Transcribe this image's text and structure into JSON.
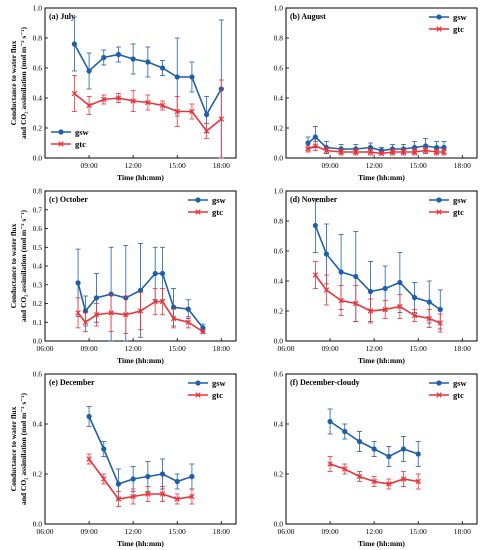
{
  "colors": {
    "gsw": "#1f5fa8",
    "gtc": "#e8343a"
  },
  "chart_data": [
    {
      "type": "line",
      "title": "(a) July",
      "xlabel": "Time (hh:mm)",
      "ylabel": [
        "Conductance to water flux",
        "and CO₂ assimilation (mol m⁻² s⁻¹)"
      ],
      "xlim": [
        "06:00",
        "19:00"
      ],
      "ylim": [
        0.0,
        1.0
      ],
      "xticks": [
        "09:00",
        "12:00",
        "15:00",
        "18:00"
      ],
      "yticks": [
        "0.0",
        "0.2",
        "0.4",
        "0.6",
        "0.8",
        "1.0"
      ],
      "legend_position": "bottom-left",
      "series": [
        {
          "name": "gsw",
          "x": [
            "08:00",
            "09:00",
            "10:00",
            "11:00",
            "12:00",
            "13:00",
            "14:00",
            "15:00",
            "16:00",
            "17:00",
            "18:00"
          ],
          "y": [
            0.76,
            0.58,
            0.67,
            0.69,
            0.66,
            0.64,
            0.6,
            0.54,
            0.54,
            0.29,
            0.46
          ],
          "err": [
            0.18,
            0.12,
            0.05,
            0.05,
            0.1,
            0.1,
            0.05,
            0.26,
            0.1,
            0.12,
            0.46
          ]
        },
        {
          "name": "gtc",
          "x": [
            "08:00",
            "09:00",
            "10:00",
            "11:00",
            "12:00",
            "13:00",
            "14:00",
            "15:00",
            "16:00",
            "17:00",
            "18:00"
          ],
          "y": [
            0.43,
            0.35,
            0.39,
            0.4,
            0.38,
            0.37,
            0.35,
            0.31,
            0.31,
            0.18,
            0.26
          ],
          "err": [
            0.12,
            0.06,
            0.03,
            0.03,
            0.07,
            0.05,
            0.03,
            0.1,
            0.05,
            0.05,
            0.26
          ]
        }
      ]
    },
    {
      "type": "line",
      "title": "(b) August",
      "xlabel": "Time (hh:mm)",
      "ylabel": [],
      "xlim": [
        "06:00",
        "19:00"
      ],
      "ylim": [
        0.0,
        1.0
      ],
      "xticks": [
        "09:00",
        "12:00",
        "15:00",
        "18:00"
      ],
      "yticks": [
        "0.0",
        "0.2",
        "0.4",
        "0.6",
        "0.8",
        "1.0"
      ],
      "legend_position": "top-right",
      "series": [
        {
          "name": "gsw",
          "x": [
            "07:30",
            "08:00",
            "08:45",
            "09:45",
            "10:45",
            "11:45",
            "12:30",
            "13:15",
            "14:00",
            "14:45",
            "15:30",
            "16:15",
            "16:45"
          ],
          "y": [
            0.1,
            0.14,
            0.07,
            0.06,
            0.06,
            0.07,
            0.05,
            0.06,
            0.06,
            0.07,
            0.08,
            0.07,
            0.07
          ],
          "err": [
            0.04,
            0.07,
            0.04,
            0.03,
            0.03,
            0.03,
            0.02,
            0.03,
            0.03,
            0.04,
            0.05,
            0.04,
            0.04
          ]
        },
        {
          "name": "gtc",
          "x": [
            "07:30",
            "08:00",
            "08:45",
            "09:45",
            "10:45",
            "11:45",
            "12:30",
            "13:15",
            "14:00",
            "14:45",
            "15:30",
            "16:15",
            "16:45"
          ],
          "y": [
            0.06,
            0.08,
            0.05,
            0.04,
            0.04,
            0.04,
            0.03,
            0.04,
            0.04,
            0.04,
            0.05,
            0.04,
            0.04
          ],
          "err": [
            0.02,
            0.03,
            0.02,
            0.02,
            0.02,
            0.02,
            0.01,
            0.02,
            0.02,
            0.02,
            0.02,
            0.02,
            0.02
          ]
        }
      ]
    },
    {
      "type": "line",
      "title": "(c) October",
      "xlabel": "Time (hh:mm)",
      "ylabel": [
        "Conductance to water flux",
        "and CO₂ assimilation (mol m⁻² s⁻¹)"
      ],
      "xlim": [
        "06:00",
        "19:00"
      ],
      "ylim": [
        0.0,
        0.8
      ],
      "xticks": [
        "06:00",
        "09:00",
        "12:00",
        "15:00",
        "18:00"
      ],
      "yticks": [
        "0.0",
        "0.1",
        "0.2",
        "0.3",
        "0.4",
        "0.5",
        "0.6",
        "0.7",
        "0.8"
      ],
      "legend_position": "top-right",
      "series": [
        {
          "name": "gsw",
          "x": [
            "08:15",
            "08:45",
            "09:30",
            "10:30",
            "11:30",
            "12:30",
            "13:30",
            "14:00",
            "14:45",
            "15:45",
            "16:45"
          ],
          "y": [
            0.31,
            0.16,
            0.23,
            0.25,
            0.23,
            0.27,
            0.36,
            0.36,
            0.18,
            0.17,
            0.07
          ],
          "err": [
            0.18,
            0.08,
            0.13,
            0.25,
            0.28,
            0.25,
            0.14,
            0.14,
            0.1,
            0.05,
            0.02
          ]
        },
        {
          "name": "gtc",
          "x": [
            "08:15",
            "08:45",
            "09:30",
            "10:30",
            "11:30",
            "12:30",
            "13:30",
            "14:00",
            "14:45",
            "15:45",
            "16:45"
          ],
          "y": [
            0.15,
            0.1,
            0.14,
            0.15,
            0.14,
            0.16,
            0.21,
            0.21,
            0.12,
            0.1,
            0.05
          ],
          "err": [
            0.08,
            0.05,
            0.06,
            0.1,
            0.1,
            0.1,
            0.07,
            0.07,
            0.05,
            0.03,
            0.01
          ]
        }
      ]
    },
    {
      "type": "line",
      "title": "(d) November",
      "xlabel": "Time (hh:mm)",
      "ylabel": [],
      "xlim": [
        "06:00",
        "19:00"
      ],
      "ylim": [
        0.0,
        1.0
      ],
      "xticks": [
        "06:00",
        "09:00",
        "12:00",
        "15:00",
        "18:00"
      ],
      "yticks": [
        "0.0",
        "0.2",
        "0.4",
        "0.6",
        "0.8",
        "1.0"
      ],
      "legend_position": "top-right",
      "series": [
        {
          "name": "gsw",
          "x": [
            "08:00",
            "08:45",
            "09:45",
            "10:45",
            "11:45",
            "12:45",
            "13:45",
            "14:45",
            "15:45",
            "16:30"
          ],
          "y": [
            0.77,
            0.58,
            0.46,
            0.43,
            0.33,
            0.35,
            0.39,
            0.29,
            0.26,
            0.21
          ],
          "err": [
            0.18,
            0.2,
            0.25,
            0.3,
            0.2,
            0.15,
            0.2,
            0.1,
            0.14,
            0.13
          ]
        },
        {
          "name": "gtc",
          "x": [
            "08:00",
            "08:45",
            "09:45",
            "10:45",
            "11:45",
            "12:45",
            "13:45",
            "14:45",
            "15:45",
            "16:30"
          ],
          "y": [
            0.44,
            0.34,
            0.27,
            0.25,
            0.2,
            0.21,
            0.23,
            0.17,
            0.15,
            0.12
          ],
          "err": [
            0.09,
            0.1,
            0.1,
            0.12,
            0.08,
            0.06,
            0.08,
            0.04,
            0.06,
            0.06
          ]
        }
      ]
    },
    {
      "type": "line",
      "title": "(e) December",
      "xlabel": "Time (hh:mm)",
      "ylabel": [
        "Conductance to water flux",
        "and CO₂ assimilation (mol m⁻² s⁻¹)"
      ],
      "xlim": [
        "06:00",
        "19:00"
      ],
      "ylim": [
        0.0,
        0.6
      ],
      "xticks": [
        "06:00",
        "09:00",
        "12:00",
        "15:00",
        "18:00"
      ],
      "yticks": [
        "0.0",
        "0.2",
        "0.4",
        "0.6"
      ],
      "legend_position": "top-right",
      "series": [
        {
          "name": "gsw",
          "x": [
            "09:00",
            "10:00",
            "11:00",
            "12:00",
            "13:00",
            "14:00",
            "15:00",
            "16:00"
          ],
          "y": [
            0.43,
            0.3,
            0.16,
            0.18,
            0.19,
            0.2,
            0.17,
            0.19
          ],
          "err": [
            0.04,
            0.03,
            0.06,
            0.05,
            0.06,
            0.06,
            0.03,
            0.05
          ]
        },
        {
          "name": "gtc",
          "x": [
            "09:00",
            "10:00",
            "11:00",
            "12:00",
            "13:00",
            "14:00",
            "15:00",
            "16:00"
          ],
          "y": [
            0.26,
            0.18,
            0.1,
            0.11,
            0.12,
            0.12,
            0.1,
            0.11
          ],
          "err": [
            0.02,
            0.02,
            0.03,
            0.03,
            0.03,
            0.03,
            0.02,
            0.03
          ]
        }
      ]
    },
    {
      "type": "line",
      "title": "(f) December-cloudy",
      "xlabel": "Time (hh:mm)",
      "ylabel": [],
      "xlim": [
        "06:00",
        "19:00"
      ],
      "ylim": [
        0.0,
        0.6
      ],
      "xticks": [
        "06:00",
        "09:00",
        "12:00",
        "15:00",
        "18:00"
      ],
      "yticks": [
        "0.0",
        "0.2",
        "0.4",
        "0.6"
      ],
      "legend_position": "top-right",
      "series": [
        {
          "name": "gsw",
          "x": [
            "09:00",
            "10:00",
            "11:00",
            "12:00",
            "13:00",
            "14:00",
            "15:00"
          ],
          "y": [
            0.41,
            0.37,
            0.33,
            0.3,
            0.27,
            0.3,
            0.28
          ],
          "err": [
            0.05,
            0.03,
            0.04,
            0.03,
            0.04,
            0.05,
            0.05
          ]
        },
        {
          "name": "gtc",
          "x": [
            "09:00",
            "10:00",
            "11:00",
            "12:00",
            "13:00",
            "14:00",
            "15:00"
          ],
          "y": [
            0.24,
            0.22,
            0.19,
            0.17,
            0.16,
            0.18,
            0.17
          ],
          "err": [
            0.03,
            0.02,
            0.02,
            0.02,
            0.02,
            0.03,
            0.03
          ]
        }
      ]
    }
  ]
}
